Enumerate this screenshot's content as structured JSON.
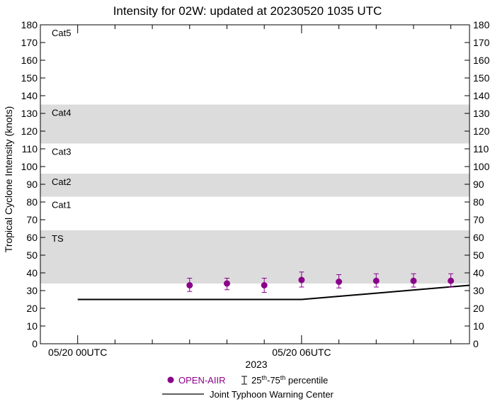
{
  "chart_data": {
    "type": "scatter",
    "title": "Intensity for 02W: updated at 20230520 1035 UTC",
    "xlabel": "2023",
    "ylabel": "Tropical Cyclone Intensity (knots)",
    "ylim": [
      0,
      180
    ],
    "yticks": [
      0,
      10,
      20,
      30,
      40,
      50,
      60,
      70,
      80,
      90,
      100,
      110,
      120,
      130,
      140,
      150,
      160,
      170,
      180
    ],
    "xlim_hours": [
      -1,
      10.5
    ],
    "xtick_hours": [
      0,
      6
    ],
    "xtick_labels": [
      "05/20 00UTC",
      "05/20 06UTC"
    ],
    "minor_xtick_hours": [
      1,
      2,
      3,
      4,
      5,
      7,
      8,
      9,
      10
    ],
    "category_bands": [
      {
        "label": "TS",
        "min": 34,
        "max": 64,
        "shaded": true
      },
      {
        "label": "Cat1",
        "min": 64,
        "max": 83,
        "shaded": false
      },
      {
        "label": "Cat2",
        "min": 83,
        "max": 96,
        "shaded": true
      },
      {
        "label": "Cat3",
        "min": 96,
        "max": 113,
        "shaded": false
      },
      {
        "label": "Cat4",
        "min": 113,
        "max": 135,
        "shaded": true
      },
      {
        "label": "Cat5",
        "min": 135,
        "max": 180,
        "shaded": false
      }
    ],
    "band_color": "#dcdcdc",
    "series": [
      {
        "name": "OPEN-AIIR",
        "color": "#8b008b",
        "x_hours": [
          3,
          4,
          5,
          6,
          7,
          8,
          9,
          10
        ],
        "values": [
          33,
          34,
          33,
          36,
          35,
          35.5,
          35.5,
          35.5
        ],
        "p25": [
          29.5,
          30.5,
          29,
          32,
          31.5,
          32,
          32,
          32
        ],
        "p75": [
          37,
          37,
          37,
          40.5,
          39,
          39.5,
          39.5,
          39.5
        ]
      },
      {
        "name": "Joint Typhoon Warning Center",
        "color": "#000000",
        "x_hours": [
          0,
          6,
          10.5
        ],
        "values": [
          25,
          25,
          33
        ]
      }
    ],
    "legend": {
      "marker_label": "OPEN-AIIR",
      "errorbar_label_prefix": "25",
      "errorbar_sup1": "th",
      "errorbar_mid": "-75",
      "errorbar_sup2": "th",
      "errorbar_suffix": " percentile",
      "line_label": "Joint Typhoon Warning Center",
      "position": "bottom-center"
    }
  }
}
